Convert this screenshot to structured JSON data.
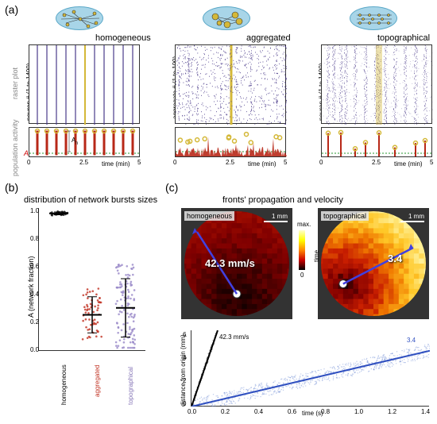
{
  "labels": {
    "a": "(a)",
    "b": "(b)",
    "c": "(c)",
    "homogeneous": "homogeneous",
    "aggregated": "aggregated",
    "topographical": "topographical",
    "raster_y": "raster plot",
    "pop_y": "population activity",
    "neuron_1400": "neuron #  (1 to 1400)",
    "aggregate_100": "aggregate #  (1 to 100)",
    "time_min": "time (min)",
    "time_s": "time (s)",
    "A": "A",
    "An": "A",
    "Ab": "n",
    "b_title": "distribution of network bursts sizes",
    "c_title": "fronts' propagation and velocity",
    "scalebar": "1 mm",
    "v1": "42.3 mm/s",
    "v2": "3.4",
    "v1b": "42.3 mm/s",
    "v2b": "3.4",
    "b_ylabel": "A   (network fraction)",
    "b_sub": "b",
    "dist_y": "distance from origin (mm)",
    "cb_max": "max.",
    "cb_min": "0",
    "cb_time": "time"
  },
  "ticks": {
    "time5": [
      "0",
      "2.5",
      "5"
    ],
    "b_y": [
      "0.0",
      "0.2",
      "0.4",
      "0.6",
      "0.8",
      "1.0"
    ],
    "b_x": [
      "homogeneous",
      "aggregated",
      "topographical"
    ],
    "c_x": [
      "0.0",
      "0.2",
      "0.4",
      "0.6",
      "0.8",
      "1.0",
      "1.2",
      "1.4"
    ],
    "c_y": [
      "0",
      "2",
      "4",
      "6"
    ]
  },
  "colors": {
    "disc": "#a8d5e8",
    "neuron": "#4a3a8a",
    "highlight": "#d4b838",
    "popfill": "#b82818",
    "popcircle": "#d4b838",
    "popgreen": "#2a9830",
    "homog_pts": "#222",
    "agg_pts": "#c03020",
    "topo_pts": "#9888c8",
    "fit1": "#000",
    "fit2": "#3050c0",
    "heatmap_grad": "linear-gradient(135deg,#3a0000,#801000,#b02000,#e04000,#f08000,#ffc030,#ffe070)"
  },
  "panel_a": {
    "columns": [
      {
        "name": "homogeneous",
        "raster_lines": 12,
        "raster_density": "sparse_vertical",
        "pop_peaks": 12
      },
      {
        "name": "aggregated",
        "raster_lines": 0,
        "raster_density": "scattered",
        "pop_peaks": 0
      },
      {
        "name": "topographical",
        "raster_lines": 18,
        "raster_density": "vertical_bands",
        "pop_peaks": 9
      }
    ],
    "time_range": [
      0,
      5
    ]
  },
  "panel_b": {
    "groups": [
      {
        "name": "homogeneous",
        "mean": 0.99,
        "sd": 0.01,
        "color": "#222",
        "n": 40
      },
      {
        "name": "aggregated",
        "mean": 0.26,
        "sd": 0.13,
        "color": "#c03020",
        "n": 60
      },
      {
        "name": "topographical",
        "mean": 0.31,
        "sd": 0.21,
        "color": "#9888c8",
        "n": 120
      }
    ],
    "ylim": [
      0,
      1
    ]
  },
  "panel_c": {
    "heatmaps": [
      {
        "name": "homogeneous",
        "velocity": 42.3,
        "scalebar_mm": 1
      },
      {
        "name": "topographical",
        "velocity": 3.4,
        "scalebar_mm": 1
      }
    ],
    "velocity_plot": {
      "xlim": [
        0,
        1.4
      ],
      "ylim": [
        0,
        6.5
      ],
      "fits": [
        {
          "slope": 42.3,
          "color": "#000",
          "label": "42.3 mm/s"
        },
        {
          "slope": 3.4,
          "color": "#3050c0",
          "label": "3.4"
        }
      ]
    }
  }
}
